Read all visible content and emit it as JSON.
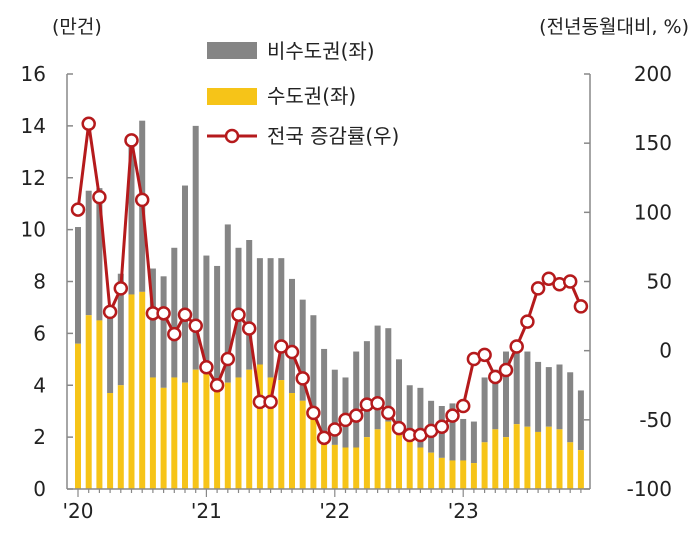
{
  "chart_data": {
    "type": "bar+line",
    "left_axis_unit": "(만건)",
    "right_axis_unit": "(전년동월대비, %)",
    "left_ylim": [
      0,
      16
    ],
    "left_ticks": [
      "0",
      "2",
      "4",
      "6",
      "8",
      "10",
      "12",
      "14",
      "16"
    ],
    "right_ylim": [
      -100,
      200
    ],
    "right_ticks": [
      "-100",
      "-50",
      "0",
      "50",
      "100",
      "150",
      "200"
    ],
    "x_tick_labels": [
      "'20",
      "'21",
      "'22",
      "'23"
    ],
    "legend": {
      "non_capital": "비수도권(좌)",
      "capital": "수도권(좌)",
      "growth": "전국 증감률(우)"
    },
    "colors": {
      "non_capital": "#858585",
      "capital": "#f6c418",
      "growth_line": "#b51a1c",
      "marker_fill": "#ffffff",
      "axis": "#888888"
    },
    "months": [
      "2020-01",
      "2020-02",
      "2020-03",
      "2020-04",
      "2020-05",
      "2020-06",
      "2020-07",
      "2020-08",
      "2020-09",
      "2020-10",
      "2020-11",
      "2020-12",
      "2021-01",
      "2021-02",
      "2021-03",
      "2021-04",
      "2021-05",
      "2021-06",
      "2021-07",
      "2021-08",
      "2021-09",
      "2021-10",
      "2021-11",
      "2021-12",
      "2022-01",
      "2022-02",
      "2022-03",
      "2022-04",
      "2022-05",
      "2022-06",
      "2022-07",
      "2022-08",
      "2022-09",
      "2022-10",
      "2022-11",
      "2022-12",
      "2023-01",
      "2023-02",
      "2023-03",
      "2023-04",
      "2023-05",
      "2023-06",
      "2023-07",
      "2023-08",
      "2023-09",
      "2023-10",
      "2023-11",
      "2023-12"
    ],
    "series": [
      {
        "name": "수도권(좌)",
        "axis": "left",
        "values": [
          5.6,
          6.7,
          6.5,
          3.7,
          4.0,
          7.5,
          7.6,
          4.3,
          3.9,
          4.3,
          4.1,
          4.6,
          4.6,
          3.9,
          4.1,
          4.3,
          4.6,
          4.8,
          4.3,
          4.2,
          3.7,
          3.4,
          2.7,
          2.0,
          1.7,
          1.6,
          1.6,
          2.0,
          2.3,
          2.6,
          2.2,
          1.9,
          1.6,
          1.4,
          1.2,
          1.1,
          1.1,
          1.0,
          1.8,
          2.3,
          2.0,
          2.5,
          2.4,
          2.2,
          2.4,
          2.3,
          1.8,
          1.5
        ]
      },
      {
        "name": "비수도권(좌)",
        "axis": "left",
        "values": [
          4.5,
          4.8,
          5.1,
          3.3,
          4.3,
          5.7,
          6.6,
          4.2,
          4.3,
          5.0,
          7.6,
          9.4,
          4.4,
          4.7,
          6.1,
          5.0,
          5.0,
          4.1,
          4.6,
          4.7,
          4.4,
          3.9,
          4.0,
          3.4,
          2.9,
          2.7,
          3.7,
          3.7,
          4.0,
          3.6,
          2.8,
          2.1,
          2.3,
          2.0,
          2.0,
          2.2,
          1.6,
          1.6,
          2.5,
          2.3,
          3.3,
          3.2,
          2.9,
          2.7,
          2.3,
          2.5,
          2.7,
          2.3
        ]
      },
      {
        "name": "전국 증감률(우)",
        "axis": "right",
        "values": [
          102,
          164,
          111,
          28,
          45,
          152,
          109,
          27,
          27,
          12,
          26,
          18,
          -12,
          -25,
          -6,
          26,
          16,
          -37,
          -37,
          3,
          -1,
          -20,
          -45,
          -63,
          -57,
          -50,
          -47,
          -39,
          -38,
          -45,
          -56,
          -61,
          -61,
          -58,
          -55,
          -47,
          -40,
          -6,
          -3,
          -19,
          -14,
          3,
          21,
          45,
          52,
          48,
          50,
          32
        ]
      }
    ]
  }
}
